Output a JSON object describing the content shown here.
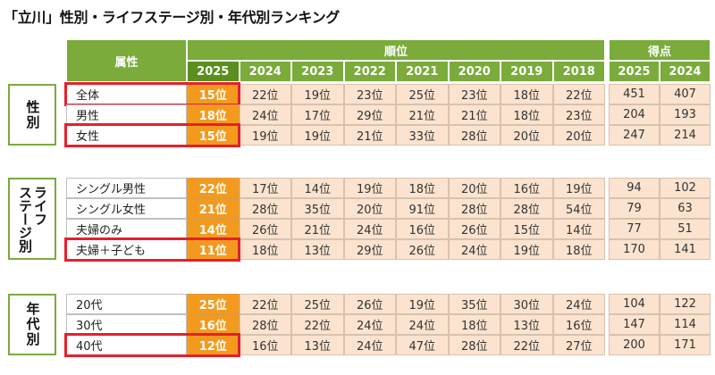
{
  "title": "「立川」性別・ライフステージ別・年代別ランキング",
  "header": {
    "attribute_label": "属性",
    "rank_label": "順位",
    "score_label": "得点",
    "rank_years": [
      "2025",
      "2024",
      "2023",
      "2022",
      "2021",
      "2020",
      "2019",
      "2018"
    ],
    "score_years": [
      "2025",
      "2024"
    ]
  },
  "groups": [
    {
      "label_cols": [
        "性別"
      ],
      "rows": [
        {
          "attr": "全体",
          "ranks": [
            "15位",
            "22位",
            "19位",
            "23位",
            "25位",
            "23位",
            "18位",
            "22位"
          ],
          "scores": [
            "451",
            "407"
          ],
          "highlight": true
        },
        {
          "attr": "男性",
          "ranks": [
            "18位",
            "24位",
            "17位",
            "29位",
            "21位",
            "21位",
            "18位",
            "23位"
          ],
          "scores": [
            "204",
            "193"
          ],
          "highlight": false
        },
        {
          "attr": "女性",
          "ranks": [
            "15位",
            "19位",
            "19位",
            "21位",
            "33位",
            "28位",
            "20位",
            "20位"
          ],
          "scores": [
            "247",
            "214"
          ],
          "highlight": true
        }
      ]
    },
    {
      "label_cols": [
        "ライフ",
        "ステージ別"
      ],
      "rows": [
        {
          "attr": "シングル男性",
          "ranks": [
            "22位",
            "17位",
            "14位",
            "19位",
            "18位",
            "20位",
            "16位",
            "19位"
          ],
          "scores": [
            "94",
            "102"
          ],
          "highlight": false
        },
        {
          "attr": "シングル女性",
          "ranks": [
            "21位",
            "28位",
            "35位",
            "20位",
            "91位",
            "28位",
            "28位",
            "54位"
          ],
          "scores": [
            "79",
            "63"
          ],
          "highlight": false
        },
        {
          "attr": "夫婦のみ",
          "ranks": [
            "14位",
            "26位",
            "21位",
            "24位",
            "16位",
            "26位",
            "15位",
            "14位"
          ],
          "scores": [
            "77",
            "51"
          ],
          "highlight": false
        },
        {
          "attr": "夫婦＋子ども",
          "ranks": [
            "11位",
            "18位",
            "13位",
            "29位",
            "26位",
            "24位",
            "19位",
            "18位"
          ],
          "scores": [
            "170",
            "141"
          ],
          "highlight": true
        }
      ]
    },
    {
      "label_cols": [
        "年代別"
      ],
      "rows": [
        {
          "attr": "20代",
          "ranks": [
            "25位",
            "22位",
            "25位",
            "26位",
            "19位",
            "35位",
            "30位",
            "24位"
          ],
          "scores": [
            "104",
            "122"
          ],
          "highlight": false
        },
        {
          "attr": "30代",
          "ranks": [
            "16位",
            "28位",
            "22位",
            "24位",
            "24位",
            "18位",
            "13位",
            "16位"
          ],
          "scores": [
            "147",
            "114"
          ],
          "highlight": false
        },
        {
          "attr": "40代",
          "ranks": [
            "12位",
            "16位",
            "13位",
            "24位",
            "47位",
            "28位",
            "22位",
            "27位"
          ],
          "scores": [
            "200",
            "171"
          ],
          "highlight": true
        }
      ]
    }
  ]
}
